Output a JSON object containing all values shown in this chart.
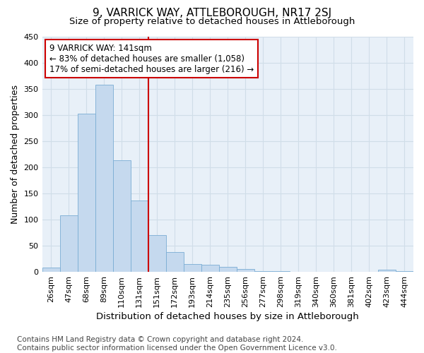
{
  "title": "9, VARRICK WAY, ATTLEBOROUGH, NR17 2SJ",
  "subtitle": "Size of property relative to detached houses in Attleborough",
  "xlabel": "Distribution of detached houses by size in Attleborough",
  "ylabel": "Number of detached properties",
  "footnote": "Contains HM Land Registry data © Crown copyright and database right 2024.\nContains public sector information licensed under the Open Government Licence v3.0.",
  "bin_labels": [
    "26sqm",
    "47sqm",
    "68sqm",
    "89sqm",
    "110sqm",
    "131sqm",
    "151sqm",
    "172sqm",
    "193sqm",
    "214sqm",
    "235sqm",
    "256sqm",
    "277sqm",
    "298sqm",
    "319sqm",
    "340sqm",
    "360sqm",
    "381sqm",
    "402sqm",
    "423sqm",
    "444sqm"
  ],
  "bar_heights": [
    8,
    108,
    302,
    358,
    213,
    136,
    70,
    38,
    15,
    13,
    10,
    6,
    1,
    1,
    0,
    0,
    0,
    0,
    0,
    4,
    2
  ],
  "bar_color": "#c5d9ee",
  "bar_edge_color": "#7aadd4",
  "vline_color": "#cc0000",
  "vline_x_index": 6,
  "annotation_text": "9 VARRICK WAY: 141sqm\n← 83% of detached houses are smaller (1,058)\n17% of semi-detached houses are larger (216) →",
  "annotation_box_color": "white",
  "annotation_box_edge_color": "#cc0000",
  "ylim": [
    0,
    450
  ],
  "yticks": [
    0,
    50,
    100,
    150,
    200,
    250,
    300,
    350,
    400,
    450
  ],
  "grid_color": "#d0dde8",
  "bg_color": "#ffffff",
  "plot_bg_color": "#e8f0f8",
  "title_fontsize": 11,
  "subtitle_fontsize": 9.5,
  "axis_label_fontsize": 9,
  "tick_fontsize": 8,
  "footnote_fontsize": 7.5,
  "annotation_fontsize": 8.5
}
